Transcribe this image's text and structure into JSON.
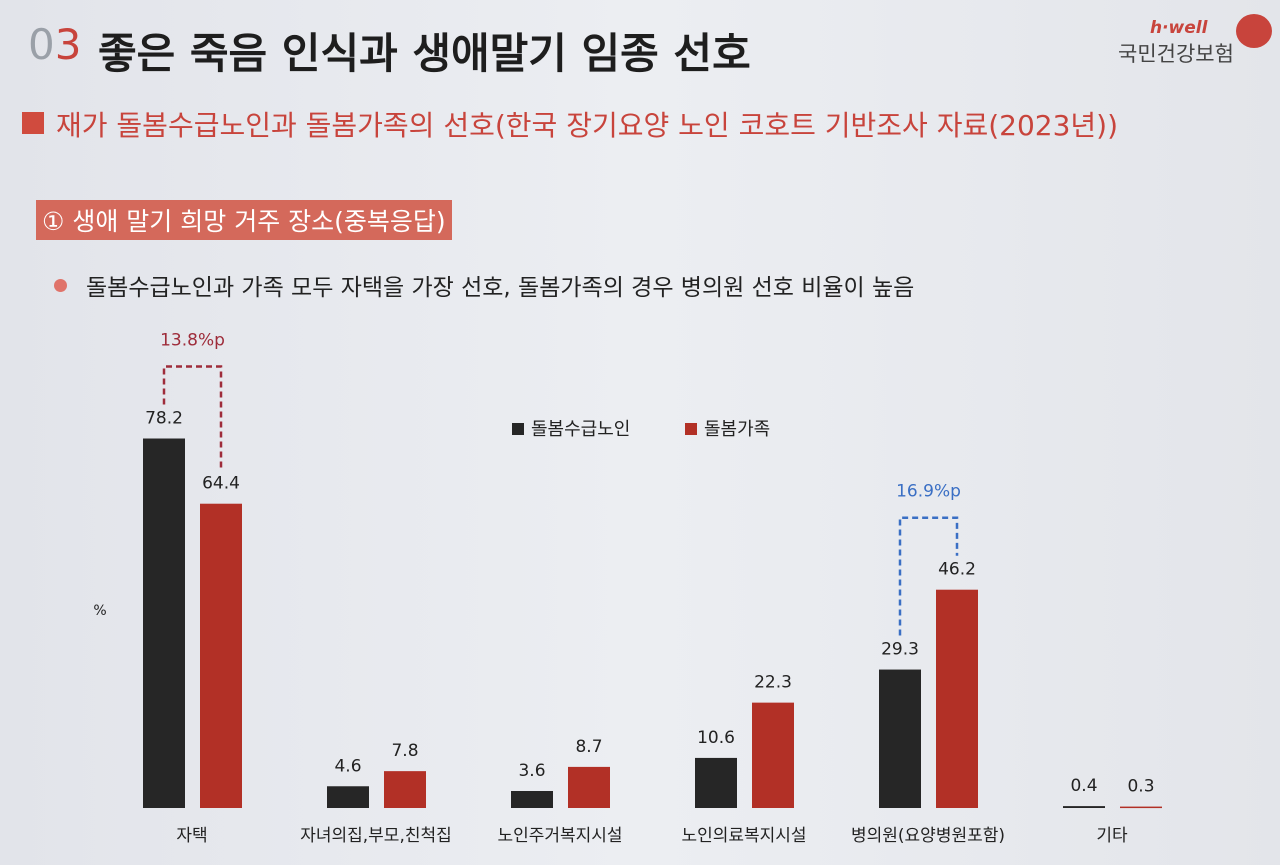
{
  "header": {
    "number": "03",
    "title": "좋은 죽음 인식과 생애말기 임종 선호",
    "logo_top": "h·well",
    "logo_bottom": "국민건강보험"
  },
  "section": "재가 돌봄수급노인과 돌봄가족의 선호(한국 장기요양 노인 코호트 기반조사 자료(2023년))",
  "subsection": "① 생애 말기 희망 거주 장소(중복응답)",
  "bullet": "돌봄수급노인과 가족 모두 자택을 가장 선호, 돌봄가족의 경우 병의원 선호 비율이 높음",
  "chart_data": {
    "type": "bar",
    "y_label": "%",
    "categories": [
      "자택",
      "자녀의집,부모,친척집",
      "노인주거복지시설",
      "노인의료복지시설",
      "병의원(요양병원포함)",
      "기타"
    ],
    "series": [
      {
        "name": "돌봄수급노인",
        "color": "#262626",
        "values": [
          78.2,
          4.6,
          3.6,
          10.6,
          29.3,
          0.4
        ]
      },
      {
        "name": "돌봄가족",
        "color": "#b23026",
        "values": [
          64.4,
          7.8,
          8.7,
          22.3,
          46.2,
          0.3
        ]
      }
    ],
    "annotations": [
      {
        "text": "13.8%p",
        "color": "#9e2c3a"
      },
      null,
      null,
      null,
      {
        "text": "16.9%p",
        "color": "#3a6fc4"
      },
      null
    ],
    "ylim": [
      0,
      80
    ]
  }
}
